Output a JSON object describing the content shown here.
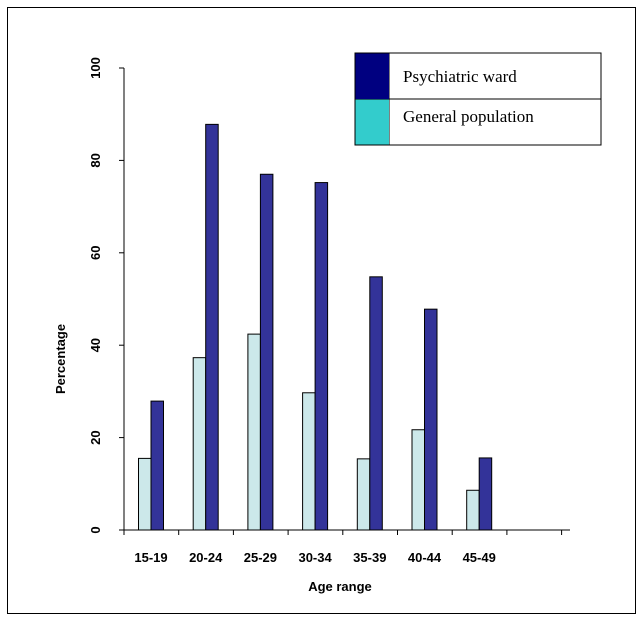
{
  "chart_data": {
    "type": "bar",
    "categories": [
      "15-19",
      "20-24",
      "25-29",
      "30-34",
      "35-39",
      "40-44",
      "45-49"
    ],
    "series": [
      {
        "name": "General population",
        "color": "#cce8ea",
        "values": [
          15.5,
          37.3,
          42.4,
          29.7,
          15.4,
          21.7,
          8.6
        ]
      },
      {
        "name": "Psychiatric ward",
        "color": "#333399",
        "values": [
          27.9,
          87.8,
          77.0,
          75.2,
          54.8,
          47.8,
          15.6
        ]
      }
    ],
    "legend": [
      {
        "label": "Psychiatric ward",
        "color": "#000080"
      },
      {
        "label": "General population",
        "color": "#33cccc"
      }
    ],
    "legend_position": "top-right",
    "xlabel": "Age range",
    "ylabel": "Percentage",
    "ylim": [
      0,
      100
    ],
    "yticks": [
      0,
      20,
      40,
      60,
      80,
      100
    ],
    "grid": false
  }
}
